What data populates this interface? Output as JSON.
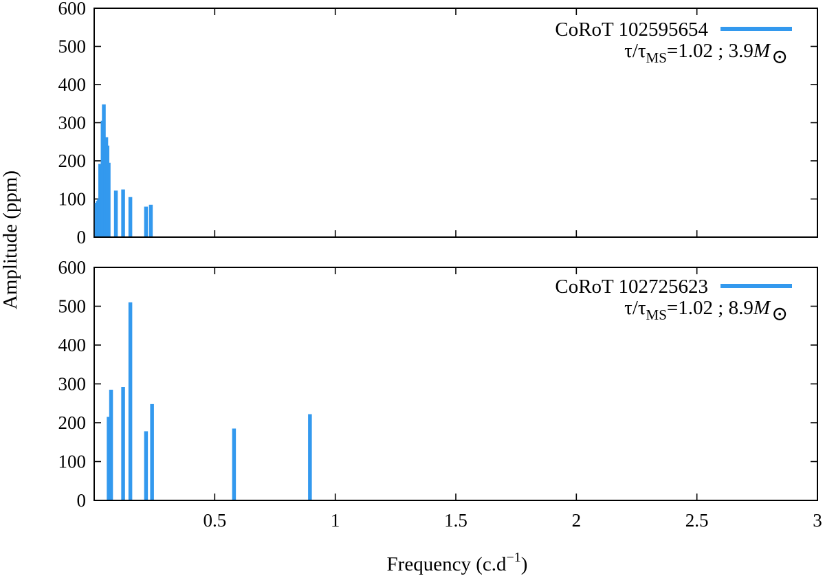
{
  "chart_data": [
    {
      "type": "bar",
      "xlabel": "Frequency (c.d",
      "xlabel_sup": "−1",
      "xlabel_end": ")",
      "ylabel": "Amplitude (ppm)",
      "xlim": [
        0,
        3
      ],
      "ylim": [
        0,
        600
      ],
      "xticks": [
        "0.5",
        "1",
        "1.5",
        "2",
        "2.5",
        "3"
      ],
      "yticks": [
        "0",
        "100",
        "200",
        "300",
        "400",
        "500",
        "600"
      ],
      "series": [
        {
          "name": "CoRoT 102595654",
          "subtitle": {
            "tau": "τ/τ",
            "ms": "MS",
            "rest": "=1.02  ;  3.9",
            "mass": "M",
            "sun": "⊙"
          },
          "color": "#3399ee",
          "x": [
            0.01,
            0.015,
            0.02,
            0.025,
            0.03,
            0.035,
            0.04,
            0.045,
            0.05,
            0.055,
            0.06,
            0.09,
            0.12,
            0.15,
            0.215,
            0.235
          ],
          "values": [
            90,
            95,
            100,
            192,
            190,
            305,
            348,
            255,
            262,
            240,
            195,
            122,
            125,
            105,
            80,
            85
          ]
        },
        {
          "name": "CoRoT 102725623",
          "subtitle": {
            "tau": "τ/τ",
            "ms": "MS",
            "rest": "=1.02  ;  8.9",
            "mass": "M",
            "sun": "⊙"
          },
          "color": "#3399ee",
          "x": [
            0.06,
            0.07,
            0.12,
            0.15,
            0.215,
            0.24,
            0.58,
            0.895
          ],
          "values": [
            215,
            285,
            292,
            510,
            178,
            248,
            185,
            222
          ]
        }
      ]
    }
  ]
}
